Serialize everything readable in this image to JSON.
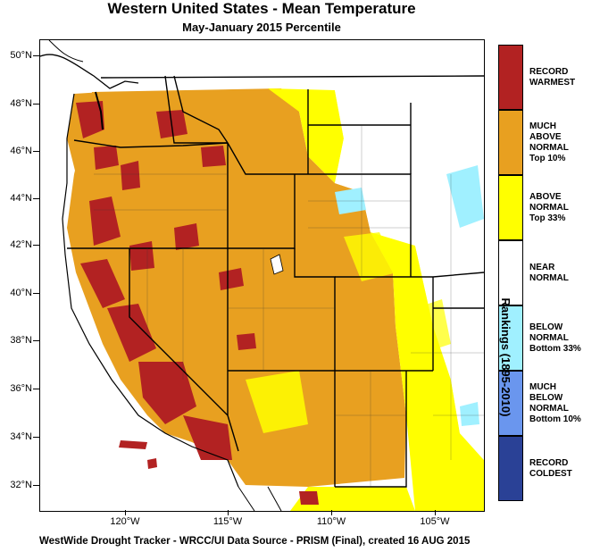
{
  "title": "Western United States - Mean Temperature",
  "subtitle": "May-January 2015 Percentile",
  "footer": "WestWide Drought Tracker - WRCC/UI  Data Source - PRISM (Final), created 16 AUG 2015",
  "legend_title": "Rankings (1895-2010)",
  "lat_labels": [
    "50°N",
    "48°N",
    "46°N",
    "44°N",
    "42°N",
    "40°N",
    "38°N",
    "36°N",
    "34°N",
    "32°N"
  ],
  "lon_labels": [
    "120°W",
    "115°W",
    "110°W",
    "105°W"
  ],
  "legend": [
    {
      "label": "RECORD\nWARMEST",
      "color": "#b22222"
    },
    {
      "label": "MUCH\nABOVE\nNORMAL\nTop 10%",
      "color": "#e8a020"
    },
    {
      "label": "ABOVE\nNORMAL\nTop 33%",
      "color": "#ffff00"
    },
    {
      "label": "NEAR\nNORMAL",
      "color": "#ffffff"
    },
    {
      "label": "BELOW\nNORMAL\nBottom 33%",
      "color": "#a0f0ff"
    },
    {
      "label": "MUCH\nBELOW\nNORMAL\nBottom 10%",
      "color": "#6a96ee"
    },
    {
      "label": "RECORD\nCOLDEST",
      "color": "#2a4196"
    }
  ]
}
